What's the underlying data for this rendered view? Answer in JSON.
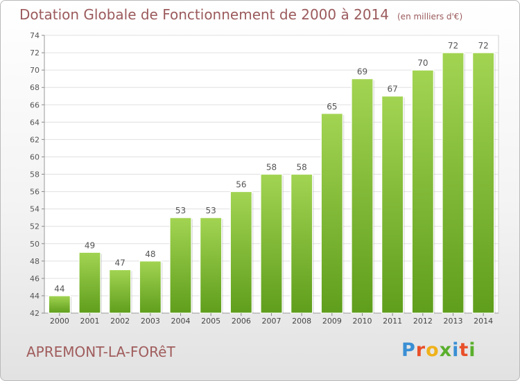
{
  "header": {
    "title": "Dotation Globale de Fonctionnement de 2000 à 2014",
    "unit": "(en milliers d'€)"
  },
  "footer": {
    "town": "APREMONT-LA-FORêT",
    "logo_letters": [
      "P",
      "r",
      "o",
      "x",
      "i",
      "t",
      "i"
    ],
    "logo_colors": [
      "#3a8fd4",
      "#e8502a",
      "#f0b21b",
      "#5aaf2d",
      "#3a8fd4",
      "#e8502a",
      "#5aaf2d"
    ]
  },
  "colors": {
    "bar_top": "#a2d452",
    "bar_bottom": "#5f9e1c",
    "title": "#9b5a5c",
    "grid": "#e0e0e0"
  },
  "chart_data": {
    "type": "bar",
    "categories": [
      "2000",
      "2001",
      "2002",
      "2003",
      "2004",
      "2005",
      "2006",
      "2007",
      "2008",
      "2009",
      "2010",
      "2011",
      "2012",
      "2013",
      "2014"
    ],
    "values": [
      44,
      49,
      47,
      48,
      53,
      53,
      56,
      58,
      58,
      65,
      69,
      67,
      70,
      72,
      72
    ],
    "data_labels": [
      "44",
      "49",
      "47",
      "48",
      "53",
      "53",
      "56",
      "58",
      "58",
      "65",
      "69",
      "67",
      "70",
      "72",
      "72"
    ],
    "ylim": [
      42,
      74
    ],
    "yticks": [
      42,
      44,
      46,
      48,
      50,
      52,
      54,
      56,
      58,
      60,
      62,
      64,
      66,
      68,
      70,
      72,
      74
    ],
    "grid": true,
    "title": "Dotation Globale de Fonctionnement de 2000 à 2014",
    "xlabel": "",
    "ylabel": ""
  }
}
